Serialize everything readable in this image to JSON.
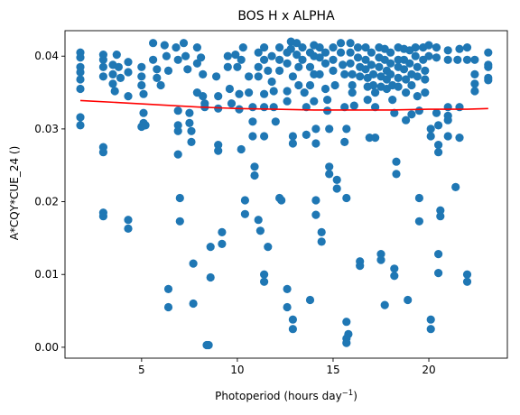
{
  "chart_data": {
    "type": "scatter",
    "title": "BOS H x ALPHA",
    "xlabel": "Photoperiod (hours day",
    "xlabel_sup": "−1",
    "xlabel_end": ")",
    "ylabel": "A*CQY*CUE_24 ()",
    "xlim": [
      1.0,
      24.1
    ],
    "ylim": [
      -0.0015,
      0.0435
    ],
    "xticks": [
      5,
      10,
      15,
      20
    ],
    "yticks": [
      0.0,
      0.01,
      0.02,
      0.03,
      0.04
    ],
    "ytick_labels": [
      "0.00",
      "0.01",
      "0.02",
      "0.03",
      "0.04"
    ],
    "grid": false,
    "colors": {
      "points": "#1f77b4",
      "fit": "#ff0000"
    },
    "fit_line": {
      "x": [
        1.8,
        4,
        6,
        8,
        10,
        12,
        14,
        16,
        18,
        20,
        22,
        23.1
      ],
      "y": [
        0.0339,
        0.0336,
        0.0333,
        0.033,
        0.0328,
        0.0327,
        0.0326,
        0.0326,
        0.0326,
        0.0327,
        0.0327,
        0.0328
      ]
    },
    "points": [
      [
        1.8,
        0.0405
      ],
      [
        1.8,
        0.0398
      ],
      [
        1.8,
        0.0385
      ],
      [
        1.8,
        0.0378
      ],
      [
        1.8,
        0.0368
      ],
      [
        1.8,
        0.0355
      ],
      [
        1.8,
        0.0316
      ],
      [
        1.8,
        0.0305
      ],
      [
        3.0,
        0.0402
      ],
      [
        3.0,
        0.0395
      ],
      [
        3.0,
        0.0385
      ],
      [
        3.0,
        0.0372
      ],
      [
        3.0,
        0.0275
      ],
      [
        3.0,
        0.0268
      ],
      [
        3.0,
        0.0185
      ],
      [
        3.0,
        0.018
      ],
      [
        3.5,
        0.0388
      ],
      [
        3.5,
        0.0375
      ],
      [
        3.5,
        0.0362
      ],
      [
        3.6,
        0.0352
      ],
      [
        3.7,
        0.0402
      ],
      [
        3.8,
        0.0385
      ],
      [
        3.9,
        0.037
      ],
      [
        4.3,
        0.0392
      ],
      [
        4.3,
        0.0378
      ],
      [
        4.3,
        0.0345
      ],
      [
        4.3,
        0.0175
      ],
      [
        4.3,
        0.0163
      ],
      [
        5.0,
        0.0385
      ],
      [
        5.0,
        0.0372
      ],
      [
        5.0,
        0.036
      ],
      [
        5.1,
        0.0348
      ],
      [
        5.1,
        0.0322
      ],
      [
        5.1,
        0.0308
      ],
      [
        5.2,
        0.0305
      ],
      [
        5.0,
        0.0303
      ],
      [
        5.6,
        0.0418
      ],
      [
        5.6,
        0.0395
      ],
      [
        5.8,
        0.0382
      ],
      [
        5.8,
        0.037
      ],
      [
        6.0,
        0.036
      ],
      [
        6.2,
        0.0415
      ],
      [
        6.3,
        0.04
      ],
      [
        6.4,
        0.038
      ],
      [
        6.4,
        0.008
      ],
      [
        6.4,
        0.0055
      ],
      [
        6.8,
        0.0412
      ],
      [
        6.9,
        0.0395
      ],
      [
        6.9,
        0.0325
      ],
      [
        6.9,
        0.0305
      ],
      [
        6.9,
        0.0297
      ],
      [
        6.9,
        0.0265
      ],
      [
        7.0,
        0.0205
      ],
      [
        7.0,
        0.0173
      ],
      [
        7.2,
        0.0418
      ],
      [
        7.3,
        0.04
      ],
      [
        7.4,
        0.0382
      ],
      [
        7.5,
        0.0322
      ],
      [
        7.5,
        0.0308
      ],
      [
        7.6,
        0.0297
      ],
      [
        7.6,
        0.0282
      ],
      [
        7.9,
        0.0412
      ],
      [
        7.9,
        0.039
      ],
      [
        7.9,
        0.035
      ],
      [
        7.7,
        0.0115
      ],
      [
        7.7,
        0.006
      ],
      [
        8.1,
        0.0398
      ],
      [
        8.2,
        0.0375
      ],
      [
        8.2,
        0.0345
      ],
      [
        8.3,
        0.0335
      ],
      [
        8.3,
        0.033
      ],
      [
        8.4,
        0.0003
      ],
      [
        8.5,
        0.0003
      ],
      [
        8.6,
        0.0138
      ],
      [
        8.6,
        0.0096
      ],
      [
        8.9,
        0.0372
      ],
      [
        9.0,
        0.0345
      ],
      [
        9.0,
        0.0328
      ],
      [
        9.0,
        0.0278
      ],
      [
        9.0,
        0.027
      ],
      [
        9.2,
        0.0158
      ],
      [
        9.2,
        0.0142
      ],
      [
        9.5,
        0.04
      ],
      [
        9.5,
        0.0385
      ],
      [
        9.6,
        0.0355
      ],
      [
        9.7,
        0.0335
      ],
      [
        9.9,
        0.0402
      ],
      [
        10.0,
        0.0385
      ],
      [
        10.1,
        0.0348
      ],
      [
        10.1,
        0.0327
      ],
      [
        10.3,
        0.0412
      ],
      [
        10.2,
        0.0395
      ],
      [
        10.2,
        0.0272
      ],
      [
        10.4,
        0.0202
      ],
      [
        10.4,
        0.0183
      ],
      [
        10.6,
        0.0372
      ],
      [
        10.6,
        0.035
      ],
      [
        10.8,
        0.033
      ],
      [
        10.8,
        0.031
      ],
      [
        10.8,
        0.029
      ],
      [
        10.9,
        0.0248
      ],
      [
        10.9,
        0.0236
      ],
      [
        11.1,
        0.0405
      ],
      [
        11.1,
        0.0385
      ],
      [
        11.1,
        0.0372
      ],
      [
        11.1,
        0.0175
      ],
      [
        11.2,
        0.016
      ],
      [
        11.4,
        0.0412
      ],
      [
        11.4,
        0.0395
      ],
      [
        11.4,
        0.0348
      ],
      [
        11.4,
        0.033
      ],
      [
        11.4,
        0.029
      ],
      [
        11.4,
        0.01
      ],
      [
        11.4,
        0.009
      ],
      [
        11.6,
        0.038
      ],
      [
        11.6,
        0.0138
      ],
      [
        11.8,
        0.04
      ],
      [
        11.8,
        0.0365
      ],
      [
        11.9,
        0.0352
      ],
      [
        11.9,
        0.033
      ],
      [
        12.0,
        0.031
      ],
      [
        12.2,
        0.0412
      ],
      [
        12.2,
        0.0395
      ],
      [
        12.2,
        0.038
      ],
      [
        12.2,
        0.0205
      ],
      [
        12.3,
        0.0202
      ],
      [
        12.6,
        0.0405
      ],
      [
        12.6,
        0.039
      ],
      [
        12.6,
        0.0352
      ],
      [
        12.6,
        0.0338
      ],
      [
        12.6,
        0.008
      ],
      [
        12.6,
        0.0055
      ],
      [
        12.8,
        0.042
      ],
      [
        12.8,
        0.041
      ],
      [
        12.9,
        0.0372
      ],
      [
        12.9,
        0.029
      ],
      [
        12.9,
        0.028
      ],
      [
        12.9,
        0.0038
      ],
      [
        12.9,
        0.0025
      ],
      [
        13.1,
        0.0418
      ],
      [
        13.1,
        0.0402
      ],
      [
        13.2,
        0.0385
      ],
      [
        13.2,
        0.036
      ],
      [
        13.4,
        0.0412
      ],
      [
        13.4,
        0.0395
      ],
      [
        13.5,
        0.035
      ],
      [
        13.6,
        0.033
      ],
      [
        13.6,
        0.0292
      ],
      [
        13.8,
        0.0405
      ],
      [
        13.8,
        0.0385
      ],
      [
        13.8,
        0.036
      ],
      [
        13.8,
        0.0065
      ],
      [
        14.0,
        0.0415
      ],
      [
        14.0,
        0.04
      ],
      [
        14.0,
        0.0375
      ],
      [
        14.0,
        0.0338
      ],
      [
        14.1,
        0.03
      ],
      [
        14.1,
        0.028
      ],
      [
        14.1,
        0.0202
      ],
      [
        14.1,
        0.0182
      ],
      [
        14.3,
        0.0412
      ],
      [
        14.3,
        0.0398
      ],
      [
        14.3,
        0.0375
      ],
      [
        14.4,
        0.0158
      ],
      [
        14.4,
        0.0145
      ],
      [
        14.6,
        0.0405
      ],
      [
        14.6,
        0.039
      ],
      [
        14.6,
        0.0355
      ],
      [
        14.7,
        0.034
      ],
      [
        14.7,
        0.0325
      ],
      [
        14.8,
        0.03
      ],
      [
        14.8,
        0.0248
      ],
      [
        14.8,
        0.0238
      ],
      [
        15.0,
        0.0412
      ],
      [
        15.0,
        0.0395
      ],
      [
        15.0,
        0.038
      ],
      [
        15.1,
        0.036
      ],
      [
        15.2,
        0.023
      ],
      [
        15.2,
        0.0218
      ],
      [
        15.4,
        0.0418
      ],
      [
        15.4,
        0.0405
      ],
      [
        15.5,
        0.0388
      ],
      [
        15.6,
        0.0375
      ],
      [
        15.6,
        0.033
      ],
      [
        15.7,
        0.03
      ],
      [
        15.6,
        0.0282
      ],
      [
        15.7,
        0.0205
      ],
      [
        15.7,
        0.0035
      ],
      [
        15.8,
        0.0018
      ],
      [
        15.7,
        0.0012
      ],
      [
        15.7,
        0.0006
      ],
      [
        15.9,
        0.0418
      ],
      [
        15.9,
        0.0405
      ],
      [
        15.9,
        0.039
      ],
      [
        16.0,
        0.0375
      ],
      [
        16.0,
        0.036
      ],
      [
        16.0,
        0.035
      ],
      [
        16.1,
        0.0332
      ],
      [
        16.3,
        0.0412
      ],
      [
        16.3,
        0.0398
      ],
      [
        16.4,
        0.0385
      ],
      [
        16.4,
        0.0372
      ],
      [
        16.4,
        0.0118
      ],
      [
        16.4,
        0.0112
      ],
      [
        16.7,
        0.0412
      ],
      [
        16.7,
        0.0395
      ],
      [
        16.7,
        0.0382
      ],
      [
        16.8,
        0.037
      ],
      [
        16.8,
        0.0358
      ],
      [
        16.8,
        0.034
      ],
      [
        16.9,
        0.0288
      ],
      [
        17.0,
        0.0405
      ],
      [
        17.0,
        0.0388
      ],
      [
        17.1,
        0.0375
      ],
      [
        17.1,
        0.036
      ],
      [
        17.2,
        0.035
      ],
      [
        17.2,
        0.033
      ],
      [
        17.2,
        0.0288
      ],
      [
        17.4,
        0.0412
      ],
      [
        17.4,
        0.0398
      ],
      [
        17.4,
        0.0385
      ],
      [
        17.5,
        0.0372
      ],
      [
        17.5,
        0.0358
      ],
      [
        17.5,
        0.0128
      ],
      [
        17.5,
        0.012
      ],
      [
        17.7,
        0.041
      ],
      [
        17.7,
        0.0395
      ],
      [
        17.8,
        0.038
      ],
      [
        17.8,
        0.0368
      ],
      [
        17.8,
        0.0355
      ],
      [
        17.7,
        0.0058
      ],
      [
        18.0,
        0.0405
      ],
      [
        18.0,
        0.039
      ],
      [
        18.0,
        0.0375
      ],
      [
        18.1,
        0.036
      ],
      [
        18.1,
        0.034
      ],
      [
        18.2,
        0.0322
      ],
      [
        18.2,
        0.0108
      ],
      [
        18.2,
        0.0098
      ],
      [
        18.4,
        0.0412
      ],
      [
        18.4,
        0.0395
      ],
      [
        18.4,
        0.0385
      ],
      [
        18.4,
        0.037
      ],
      [
        18.4,
        0.0358
      ],
      [
        18.3,
        0.0255
      ],
      [
        18.3,
        0.0238
      ],
      [
        18.7,
        0.041
      ],
      [
        18.7,
        0.0395
      ],
      [
        18.7,
        0.0382
      ],
      [
        18.8,
        0.0368
      ],
      [
        18.8,
        0.035
      ],
      [
        18.8,
        0.0312
      ],
      [
        18.9,
        0.0065
      ],
      [
        19.0,
        0.0408
      ],
      [
        19.0,
        0.039
      ],
      [
        19.1,
        0.0375
      ],
      [
        19.1,
        0.036
      ],
      [
        19.1,
        0.032
      ],
      [
        19.3,
        0.0412
      ],
      [
        19.3,
        0.04
      ],
      [
        19.4,
        0.0385
      ],
      [
        19.4,
        0.0372
      ],
      [
        19.4,
        0.0345
      ],
      [
        19.5,
        0.0325
      ],
      [
        19.5,
        0.0205
      ],
      [
        19.5,
        0.0173
      ],
      [
        19.7,
        0.0412
      ],
      [
        19.7,
        0.0395
      ],
      [
        19.8,
        0.038
      ],
      [
        19.8,
        0.0368
      ],
      [
        19.8,
        0.035
      ],
      [
        20.0,
        0.0415
      ],
      [
        20.0,
        0.04
      ],
      [
        20.1,
        0.03
      ],
      [
        20.1,
        0.029
      ],
      [
        20.1,
        0.0038
      ],
      [
        20.1,
        0.0025
      ],
      [
        20.4,
        0.0412
      ],
      [
        20.4,
        0.0398
      ],
      [
        20.4,
        0.0322
      ],
      [
        20.5,
        0.0305
      ],
      [
        20.5,
        0.0278
      ],
      [
        20.5,
        0.0268
      ],
      [
        20.5,
        0.0128
      ],
      [
        20.5,
        0.0102
      ],
      [
        20.6,
        0.0188
      ],
      [
        20.6,
        0.018
      ],
      [
        21.0,
        0.0408
      ],
      [
        21.0,
        0.0395
      ],
      [
        21.0,
        0.033
      ],
      [
        21.0,
        0.0318
      ],
      [
        21.0,
        0.0312
      ],
      [
        21.0,
        0.029
      ],
      [
        21.6,
        0.041
      ],
      [
        21.5,
        0.0395
      ],
      [
        21.6,
        0.033
      ],
      [
        21.6,
        0.0288
      ],
      [
        21.4,
        0.022
      ],
      [
        22.0,
        0.0412
      ],
      [
        22.0,
        0.0395
      ],
      [
        22.0,
        0.01
      ],
      [
        22.0,
        0.009
      ],
      [
        22.4,
        0.0395
      ],
      [
        22.4,
        0.0375
      ],
      [
        22.4,
        0.0362
      ],
      [
        22.4,
        0.0352
      ],
      [
        23.1,
        0.0405
      ],
      [
        23.1,
        0.0388
      ],
      [
        23.1,
        0.0385
      ],
      [
        23.1,
        0.037
      ],
      [
        23.1,
        0.0367
      ]
    ]
  }
}
